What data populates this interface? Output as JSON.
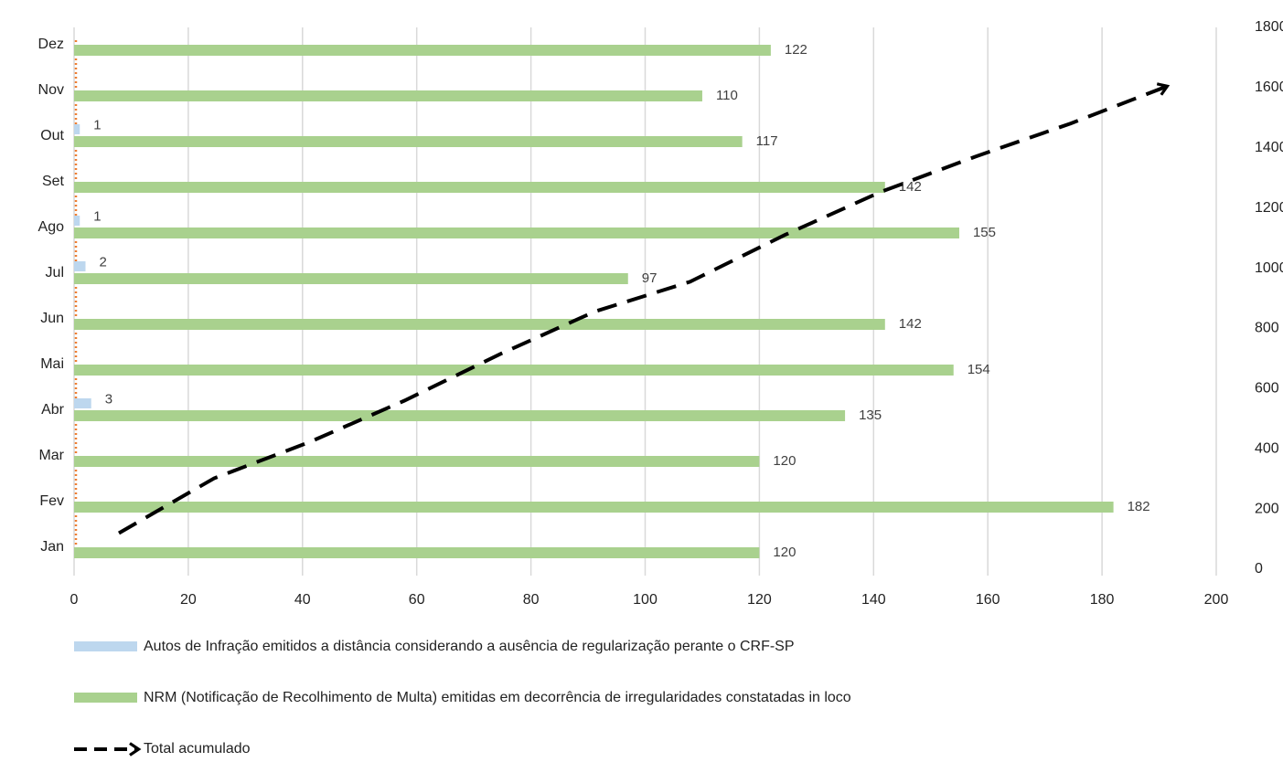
{
  "chart_data": {
    "type": "barh_combo",
    "categories": [
      "Jan",
      "Fev",
      "Mar",
      "Abr",
      "Mai",
      "Jun",
      "Jul",
      "Ago",
      "Set",
      "Out",
      "Nov",
      "Dez"
    ],
    "series": [
      {
        "name": "Autos de Infração emitidos a distância considerando a ausência de regularização perante o CRF-SP",
        "color": "#bdd7ee",
        "values": [
          0,
          0,
          0,
          3,
          0,
          0,
          2,
          1,
          0,
          1,
          0,
          0
        ]
      },
      {
        "name": "NRM (Notificação de Recolhimento de Multa) emitidas em decorrência de irregularidades constatadas in loco",
        "color": "#a9d18e",
        "values": [
          120,
          182,
          120,
          135,
          154,
          142,
          97,
          155,
          142,
          117,
          110,
          122
        ]
      },
      {
        "name": "Total acumulado",
        "color": "#000000",
        "axis": "y2",
        "values": [
          120,
          302,
          422,
          560,
          714,
          856,
          955,
          1111,
          1253,
          1371,
          1481,
          1603
        ]
      }
    ],
    "xlim": [
      0,
      200
    ],
    "xticks": [
      0,
      20,
      40,
      60,
      80,
      100,
      120,
      140,
      160,
      180,
      200
    ],
    "y2lim": [
      0,
      1800
    ],
    "y2ticks": [
      0,
      200,
      400,
      600,
      800,
      1000,
      1200,
      1400,
      1600,
      1800
    ],
    "grid": true
  }
}
